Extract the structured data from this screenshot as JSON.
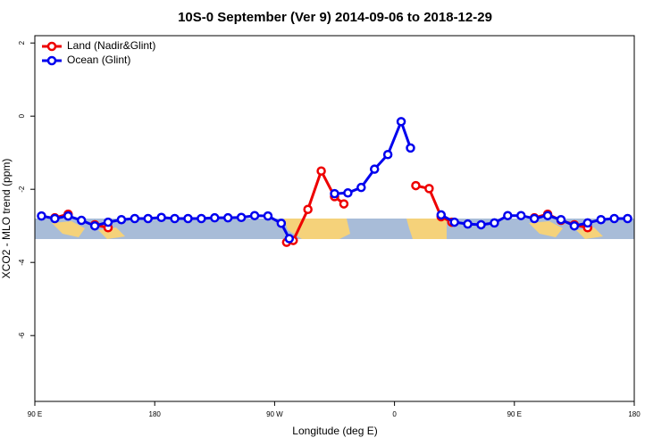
{
  "chart_data": {
    "type": "line",
    "title": "10S-0 September (Ver 9)   2014-09-06 to 2018-12-29",
    "xlabel": "Longitude (deg E)",
    "ylabel": "XCO2 - MLO trend (ppm)",
    "xlim": [
      90,
      540
    ],
    "xticks": [
      {
        "value": 90,
        "label": "90 E"
      },
      180,
      {
        "value": 270,
        "label": "90 W"
      },
      {
        "value": 360,
        "label": "0"
      },
      {
        "value": 450,
        "label": "90 E"
      },
      {
        "value": 540,
        "label": "180"
      }
    ],
    "ylim": [
      -7.8,
      2.2
    ],
    "yticks": [
      2,
      0,
      -2,
      -4,
      -6
    ],
    "legend": "top-left",
    "series": [
      {
        "name": "Land (Nadir&Glint)",
        "color": "#ee0000",
        "x": [
          105,
          115,
          null,
          135,
          145,
          null,
          279,
          284,
          295,
          305,
          315,
          322,
          null,
          376,
          386,
          395,
          403,
          null,
          465,
          475,
          485,
          495,
          505
        ],
        "values": [
          -2.78,
          -2.68,
          null,
          -2.97,
          -3.05,
          null,
          -3.45,
          -3.4,
          -2.55,
          -1.5,
          -2.2,
          -2.4,
          null,
          -1.9,
          -1.98,
          -2.75,
          -2.9,
          null,
          -2.78,
          -2.68,
          -2.85,
          -2.97,
          -3.05
        ]
      },
      {
        "name": "Ocean (Glint)",
        "color": "#0000ee",
        "x": [
          95,
          105,
          115,
          125,
          135,
          145,
          155,
          165,
          175,
          185,
          195,
          205,
          215,
          225,
          235,
          245,
          255,
          265,
          275,
          281,
          null,
          315,
          325,
          335,
          345,
          355,
          365,
          372,
          null,
          395,
          405,
          415,
          425,
          435,
          445,
          455,
          465,
          475,
          485,
          495,
          505,
          515,
          525,
          535
        ],
        "values": [
          -2.73,
          -2.8,
          -2.73,
          -2.85,
          -3.0,
          -2.9,
          -2.83,
          -2.8,
          -2.8,
          -2.77,
          -2.8,
          -2.8,
          -2.8,
          -2.78,
          -2.78,
          -2.77,
          -2.72,
          -2.73,
          -2.93,
          -3.35,
          null,
          -2.12,
          -2.1,
          -1.95,
          -1.45,
          -1.05,
          -0.15,
          -0.87,
          null,
          -2.7,
          -2.9,
          -2.95,
          -2.97,
          -2.92,
          -2.72,
          -2.72,
          -2.8,
          -2.72,
          -2.83,
          -3.0,
          -2.92,
          -2.83,
          -2.8,
          -2.8
        ]
      }
    ]
  }
}
